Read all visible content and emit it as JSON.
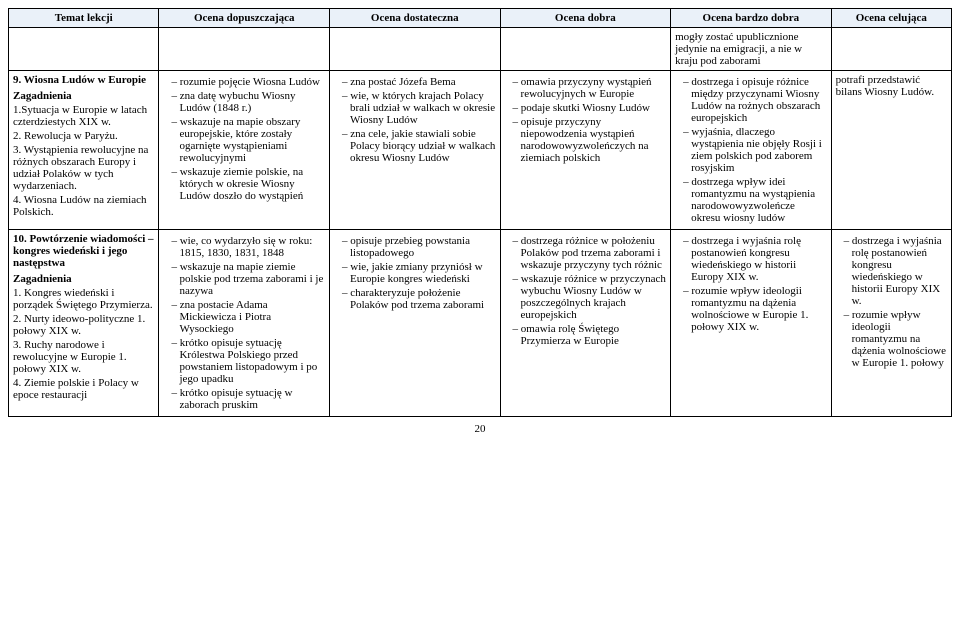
{
  "headers": {
    "c1": "Temat lekcji",
    "c2": "Ocena dopuszczająca",
    "c3": "Ocena dostateczna",
    "c4": "Ocena dobra",
    "c5": "Ocena bardzo dobra",
    "c6": "Ocena celująca"
  },
  "row_context": {
    "c5": "mogły zostać upublicznione jedynie na emigracji, a nie w kraju pod zaborami"
  },
  "row9": {
    "topic_title": "9. Wiosna Ludów w Europie",
    "zagadnienia_label": "Zagadnienia",
    "zagadnienia": [
      "1.Sytuacja w Europie w latach czterdziestych XIX w.",
      "2. Rewolucja w Paryżu.",
      "3. Wystąpienia rewolucyjne na różnych obszarach Europy i udział Polaków w tych wydarzeniach.",
      "4. Wiosna Ludów na ziemiach Polskich."
    ],
    "c2": [
      "rozumie pojęcie Wiosna Ludów",
      "zna datę wybuchu Wiosny Ludów (1848 r.)",
      "wskazuje na mapie obszary europejskie, które zostały ogarnięte wystąpieniami rewolucyjnymi",
      "wskazuje ziemie polskie, na których w okresie Wiosny Ludów doszło do wystąpień"
    ],
    "c3": [
      "zna postać Józefa Bema",
      "wie, w których krajach Polacy brali udział w walkach w okresie Wiosny Ludów",
      "zna cele, jakie stawiali sobie Polacy biorący udział w walkach okresu Wiosny Ludów"
    ],
    "c4": [
      "omawia przyczyny wystąpień rewolucyjnych w Europie",
      "podaje skutki Wiosny Ludów",
      "opisuje przyczyny niepowodzenia wystąpień narodowowyzwoleńczych na ziemiach polskich"
    ],
    "c5": [
      "dostrzega i opisuje różnice między przyczynami Wiosny Ludów na rożnych obszarach europejskich",
      "wyjaśnia, dlaczego wystąpienia nie objęły Rosji i ziem polskich pod zaborem rosyjskim",
      "dostrzega wpływ idei romantyzmu na wystąpienia narodowowyzwoleńcze okresu wiosny ludów"
    ],
    "c6": "potrafi przedstawić bilans Wiosny Ludów."
  },
  "row10": {
    "topic_title": "10. Powtórzenie wiadomości – kongres wiedeński i jego następstwa",
    "zagadnienia_label": "Zagadnienia",
    "zagadnienia": [
      "1. Kongres wiedeński i porządek Świętego Przymierza.",
      "2. Nurty ideowo-polityczne 1. połowy XIX w.",
      "3. Ruchy narodowe i rewolucyjne w Europie 1. połowy XIX w.",
      "4. Ziemie polskie i Polacy w epoce restauracji"
    ],
    "c2": [
      "wie, co wydarzyło się w roku: 1815, 1830, 1831, 1848",
      "wskazuje na mapie ziemie polskie pod trzema zaborami i je nazywa",
      "zna postacie Adama Mickiewicza i Piotra Wysockiego",
      "krótko opisuje sytuację Królestwa Polskiego przed powstaniem listopadowym i po jego upadku",
      "krótko opisuje sytuację w zaborach pruskim"
    ],
    "c3": [
      "opisuje przebieg powstania listopadowego",
      "wie, jakie zmiany przyniósł w Europie kongres wiedeński",
      "charakteryzuje położenie Polaków pod trzema zaborami"
    ],
    "c4": [
      "dostrzega różnice w położeniu Polaków pod trzema zaborami i wskazuje przyczyny tych różnic",
      "wskazuje różnice w przyczynach wybuchu Wiosny Ludów w poszczególnych krajach europejskich",
      "omawia rolę Świętego Przymierza w Europie"
    ],
    "c5": [
      "dostrzega i wyjaśnia rolę postanowień kongresu wiedeńskiego w historii Europy XIX w.",
      "rozumie wpływ ideologii romantyzmu na dążenia wolnościowe w Europie 1. połowy XIX w."
    ],
    "c6": [
      "dostrzega i wyjaśnia rolę postanowień kongresu wiedeńskiego w historii Europy XIX w.",
      "rozumie wpływ ideologii romantyzmu na dążenia wolnościowe w Europie 1. połowy"
    ]
  },
  "page_number": "20"
}
